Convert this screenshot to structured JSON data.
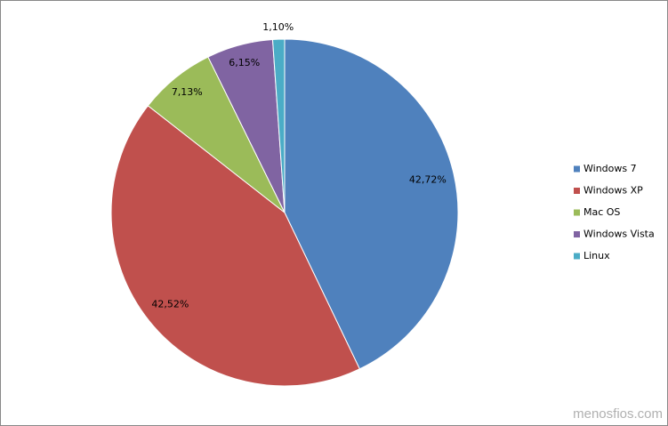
{
  "chart_data": {
    "type": "pie",
    "categories": [
      "Windows 7",
      "Windows XP",
      "Mac OS",
      "Windows Vista",
      "Linux"
    ],
    "values": [
      42.72,
      42.52,
      7.13,
      6.15,
      1.1
    ],
    "value_labels": [
      "42,72%",
      "42,52%",
      "7,13%",
      "6,15%",
      "1,10%"
    ],
    "colors": [
      "#4f81bd",
      "#c0504d",
      "#9bbb59",
      "#8064a2",
      "#4bacc6"
    ],
    "legend": "right"
  },
  "watermark": "menosfios.com"
}
